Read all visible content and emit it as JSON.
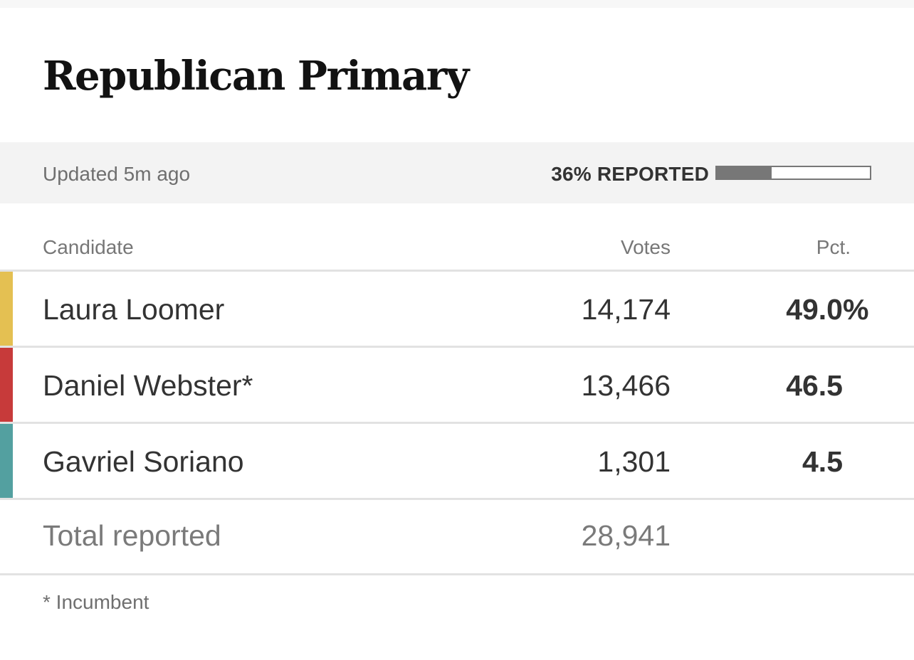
{
  "title": "Republican Primary",
  "status": {
    "updated": "Updated 5m ago",
    "reported_label": "36% REPORTED",
    "reported_fraction": 0.36,
    "bar_fill_color": "#777777"
  },
  "table": {
    "headers": {
      "candidate": "Candidate",
      "votes": "Votes",
      "pct": "Pct."
    },
    "rows": [
      {
        "name": "Laura Loomer",
        "votes": "14,174",
        "pct": "49.0",
        "pct_suffix": "%",
        "color": "#e4c052"
      },
      {
        "name": "Daniel Webster*",
        "votes": "13,466",
        "pct": "46.5",
        "pct_suffix": "",
        "color": "#c73a3a"
      },
      {
        "name": "Gavriel Soriano",
        "votes": "1,301",
        "pct": "4.5",
        "pct_suffix": "",
        "color": "#53a0a0"
      }
    ],
    "total": {
      "label": "Total reported",
      "votes": "28,941"
    }
  },
  "footnote": "* Incumbent"
}
